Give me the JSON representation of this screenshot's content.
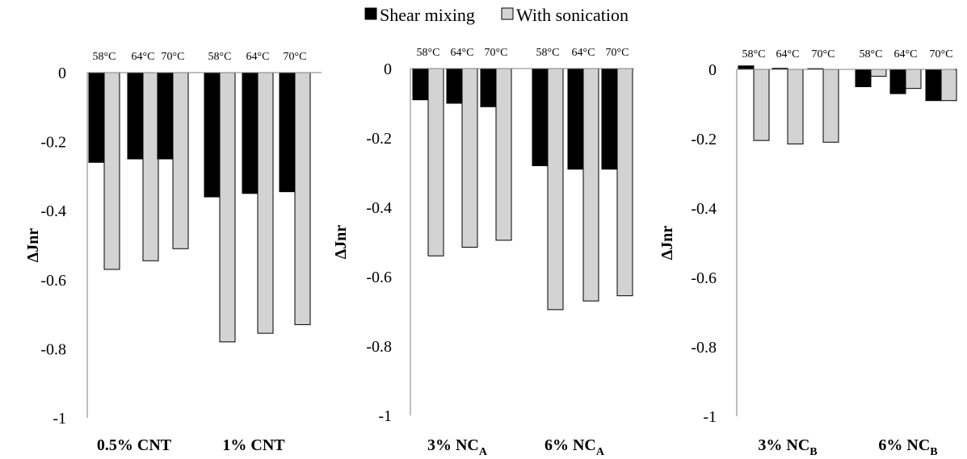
{
  "legend": [
    {
      "label": "Shear mixing",
      "color": "#000000"
    },
    {
      "label": "With sonication",
      "color": "#d3d3d3"
    }
  ],
  "chart_data": [
    {
      "type": "bar",
      "ylabel": "ΔJnr",
      "ylim": [
        -1,
        0
      ],
      "yticks": [
        "0",
        "-0.2",
        "-0.4",
        "-0.6",
        "-0.8",
        "-1"
      ],
      "ytick_values": [
        0,
        -0.2,
        -0.4,
        -0.6,
        -0.8,
        -1
      ],
      "groups": [
        {
          "label": "0.5% CNT",
          "sub": ""
        },
        {
          "label": "1% CNT",
          "sub": ""
        }
      ],
      "categories": [
        "58°C",
        "64°C",
        "70°C",
        "58°C",
        "64°C",
        "70°C"
      ],
      "series": [
        {
          "name": "Shear mixing",
          "values": [
            -0.26,
            -0.25,
            -0.25,
            -0.36,
            -0.35,
            -0.345
          ]
        },
        {
          "name": "With sonication",
          "values": [
            -0.57,
            -0.545,
            -0.51,
            -0.78,
            -0.755,
            -0.73
          ]
        }
      ]
    },
    {
      "type": "bar",
      "ylabel": "ΔJnr",
      "ylim": [
        -1,
        0
      ],
      "yticks": [
        "0",
        "-0.2",
        "-0.4",
        "-0.6",
        "-0.8",
        "-1"
      ],
      "ytick_values": [
        0,
        -0.2,
        -0.4,
        -0.6,
        -0.8,
        -1
      ],
      "groups": [
        {
          "label": "3% NC",
          "sub": "A"
        },
        {
          "label": "6% NC",
          "sub": "A"
        }
      ],
      "categories": [
        "58°C",
        "64°C",
        "70°C",
        "58°C",
        "64°C",
        "70°C"
      ],
      "series": [
        {
          "name": "Shear mixing",
          "values": [
            -0.09,
            -0.1,
            -0.11,
            -0.28,
            -0.29,
            -0.29
          ]
        },
        {
          "name": "With sonication",
          "values": [
            -0.54,
            -0.515,
            -0.495,
            -0.695,
            -0.67,
            -0.655
          ]
        }
      ]
    },
    {
      "type": "bar",
      "ylabel": "ΔJnr",
      "ylim": [
        -1,
        0
      ],
      "yticks": [
        "0",
        "-0.2",
        "-0.4",
        "-0.6",
        "-0.8",
        "-1"
      ],
      "ytick_values": [
        0,
        -0.2,
        -0.4,
        -0.6,
        -0.8,
        -1
      ],
      "groups": [
        {
          "label": "3% NC",
          "sub": "B"
        },
        {
          "label": "6% NC",
          "sub": "B"
        }
      ],
      "categories": [
        "58°C",
        "64°C",
        "70°C",
        "58°C",
        "64°C",
        "70°C"
      ],
      "series": [
        {
          "name": "Shear mixing",
          "values": [
            0.01,
            0.003,
            0.002,
            -0.05,
            -0.07,
            -0.09
          ]
        },
        {
          "name": "With sonication",
          "values": [
            -0.205,
            -0.215,
            -0.21,
            -0.02,
            -0.055,
            -0.09
          ]
        }
      ]
    }
  ]
}
